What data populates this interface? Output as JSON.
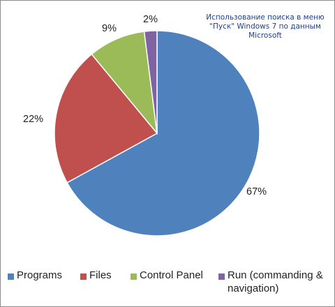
{
  "chart_data": {
    "type": "pie",
    "title": "",
    "annotation": [
      "Использование поиска в меню",
      "\"Пуск\" Windows 7 по данным",
      "Microsoft"
    ],
    "categories": [
      "Programs",
      "Files",
      "Control Panel",
      "Run (commanding & navigation)"
    ],
    "values": [
      67,
      22,
      9,
      2
    ],
    "data_labels": [
      "67%",
      "22%",
      "9%",
      "2%"
    ],
    "colors": [
      "#4f81bd",
      "#c0504d",
      "#9bbb59",
      "#8064a2"
    ],
    "legend_position": "bottom",
    "legend_lines": [
      [
        "Programs"
      ],
      [
        "Files"
      ],
      [
        "Control Panel"
      ],
      [
        "Run (commanding &",
        "navigation)"
      ]
    ],
    "start_angle_deg": 0,
    "direction": "clockwise"
  }
}
